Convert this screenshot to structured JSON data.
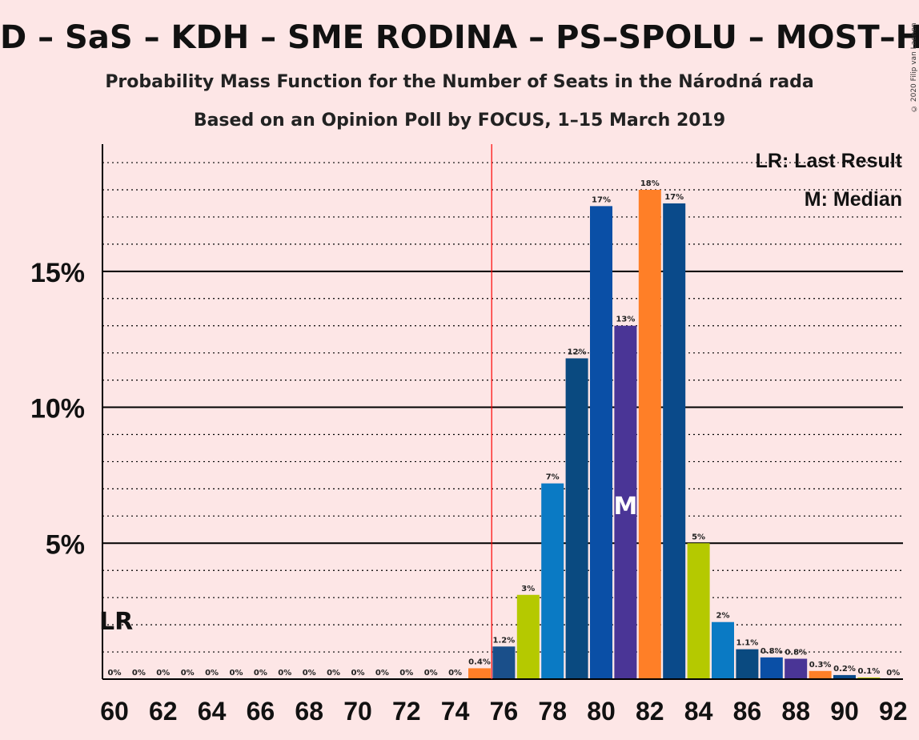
{
  "title": "D – SaS – KDH – SME RODINA – PS–SPOLU – MOST–HÍD",
  "subtitle1": "Probability Mass Function for the Number of Seats in the Národná rada",
  "subtitle2": "Based on an Opinion Poll by FOCUS, 1–15 March 2019",
  "copyright": "© 2020 Filip van Laenen",
  "legend": {
    "last_result": "LR: Last Result",
    "median": "M: Median"
  },
  "markers": {
    "lr_label": "LR",
    "median_label": "M"
  },
  "colors": {
    "background": "#fde6e6",
    "last_result_line": "#ff0000",
    "palette": [
      "#ff7f27",
      "#1a4f8a",
      "#b5c900",
      "#0a7ac4",
      "#0a4a80",
      "#0a4fa6",
      "#4a3596",
      "#ff7f27",
      "#0a4a8a"
    ]
  },
  "chart_data": {
    "type": "bar",
    "xlabel": "",
    "ylabel": "",
    "ylim": [
      0,
      0.195
    ],
    "y_ticks": [
      {
        "value": 0.05,
        "label": "5%"
      },
      {
        "value": 0.1,
        "label": "10%"
      },
      {
        "value": 0.15,
        "label": "15%"
      }
    ],
    "x_ticks": [
      60,
      62,
      64,
      66,
      68,
      70,
      72,
      74,
      76,
      78,
      80,
      82,
      84,
      86,
      88,
      90,
      92
    ],
    "last_result_seat": 60,
    "median_seat": 81,
    "majority_line_seat": 76,
    "bars": [
      {
        "seat": 60,
        "value": 0,
        "label": "0%",
        "color": "#ff7f27"
      },
      {
        "seat": 61,
        "value": 0,
        "label": "0%",
        "color": "#ff7f27"
      },
      {
        "seat": 62,
        "value": 0,
        "label": "0%",
        "color": "#ff7f27"
      },
      {
        "seat": 63,
        "value": 0,
        "label": "0%",
        "color": "#ff7f27"
      },
      {
        "seat": 64,
        "value": 0,
        "label": "0%",
        "color": "#ff7f27"
      },
      {
        "seat": 65,
        "value": 0,
        "label": "0%",
        "color": "#ff7f27"
      },
      {
        "seat": 66,
        "value": 0,
        "label": "0%",
        "color": "#ff7f27"
      },
      {
        "seat": 67,
        "value": 0,
        "label": "0%",
        "color": "#ff7f27"
      },
      {
        "seat": 68,
        "value": 0,
        "label": "0%",
        "color": "#ff7f27"
      },
      {
        "seat": 69,
        "value": 0,
        "label": "0%",
        "color": "#ff7f27"
      },
      {
        "seat": 70,
        "value": 0,
        "label": "0%",
        "color": "#ff7f27"
      },
      {
        "seat": 71,
        "value": 0,
        "label": "0%",
        "color": "#ff7f27"
      },
      {
        "seat": 72,
        "value": 0,
        "label": "0%",
        "color": "#ff7f27"
      },
      {
        "seat": 73,
        "value": 0,
        "label": "0%",
        "color": "#ff7f27"
      },
      {
        "seat": 74,
        "value": 0,
        "label": "0%",
        "color": "#ff7f27"
      },
      {
        "seat": 75,
        "value": 0.004,
        "label": "0.4%",
        "color": "#ff7f27"
      },
      {
        "seat": 76,
        "value": 0.012,
        "label": "1.2%",
        "color": "#1a4f8a"
      },
      {
        "seat": 77,
        "value": 0.031,
        "label": "3%",
        "color": "#b5c900"
      },
      {
        "seat": 78,
        "value": 0.072,
        "label": "7%",
        "color": "#0a7ac4"
      },
      {
        "seat": 79,
        "value": 0.118,
        "label": "12%",
        "color": "#0a4a80"
      },
      {
        "seat": 80,
        "value": 0.174,
        "label": "17%",
        "color": "#0a4fa6"
      },
      {
        "seat": 81,
        "value": 0.13,
        "label": "13%",
        "color": "#4a3596"
      },
      {
        "seat": 82,
        "value": 0.18,
        "label": "18%",
        "color": "#ff7f27"
      },
      {
        "seat": 83,
        "value": 0.175,
        "label": "17%",
        "color": "#0a4a8a"
      },
      {
        "seat": 84,
        "value": 0.05,
        "label": "5%",
        "color": "#b5c900"
      },
      {
        "seat": 85,
        "value": 0.021,
        "label": "2%",
        "color": "#0a7ac4"
      },
      {
        "seat": 86,
        "value": 0.011,
        "label": "1.1%",
        "color": "#0a4a80"
      },
      {
        "seat": 87,
        "value": 0.008,
        "label": "0.8%",
        "color": "#0a4fa6"
      },
      {
        "seat": 88,
        "value": 0.0075,
        "label": "0.8%",
        "color": "#4a3596"
      },
      {
        "seat": 89,
        "value": 0.003,
        "label": "0.3%",
        "color": "#ff7f27"
      },
      {
        "seat": 90,
        "value": 0.0015,
        "label": "0.2%",
        "color": "#0a4a8a"
      },
      {
        "seat": 91,
        "value": 0.0006,
        "label": "0.1%",
        "color": "#b5c900"
      },
      {
        "seat": 92,
        "value": 0,
        "label": "0%",
        "color": "#0a7ac4"
      }
    ]
  }
}
